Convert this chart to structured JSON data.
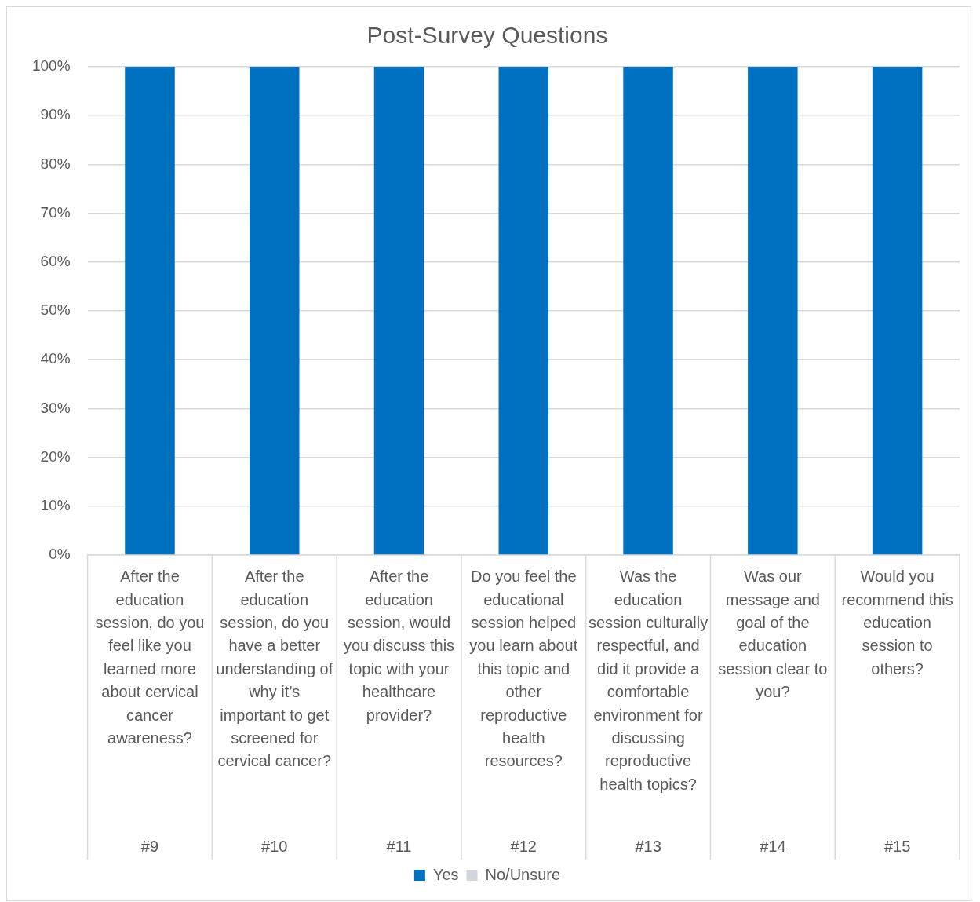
{
  "chart_data": {
    "type": "bar",
    "title": "Post-Survey Questions",
    "stacked": true,
    "categories": [
      "After the education session, do you feel like you learned more about cervical cancer awareness?",
      "After the education session, do you have a better understanding of why it’s important to get screened for cervical cancer?",
      "After the education session, would you discuss this topic with your healthcare provider?",
      "Do you feel the educational session helped you learn about this topic and other reproductive health resources?",
      "Was the education session culturally respectful, and did it provide a comfortable environment for discussing reproductive health topics?",
      "Was our message and goal of the education session clear to you?",
      "Would you recommend this education session to others?"
    ],
    "series": [
      {
        "name": "Yes",
        "color": "#0070c0",
        "values": [
          100,
          100,
          100,
          100,
          100,
          100,
          100
        ]
      },
      {
        "name": "No/Unsure",
        "color": "#d0d5de",
        "values": [
          0,
          0,
          0,
          0,
          0,
          0,
          0
        ]
      }
    ],
    "ylim": [
      0,
      100
    ],
    "yticks": [
      {
        "value": 0,
        "label": "0%"
      },
      {
        "value": 10,
        "label": "10%"
      },
      {
        "value": 20,
        "label": "20%"
      },
      {
        "value": 30,
        "label": "30%"
      },
      {
        "value": 40,
        "label": "40%"
      },
      {
        "value": 50,
        "label": "50%"
      },
      {
        "value": 60,
        "label": "60%"
      },
      {
        "value": 70,
        "label": "70%"
      },
      {
        "value": 80,
        "label": "80%"
      },
      {
        "value": 90,
        "label": "90%"
      },
      {
        "value": 100,
        "label": "100%"
      }
    ],
    "grid": "y",
    "legend": "bottom",
    "annotations": [
      "#9",
      "#10",
      "#11",
      "#12",
      "#13",
      "#14",
      "#15"
    ]
  }
}
